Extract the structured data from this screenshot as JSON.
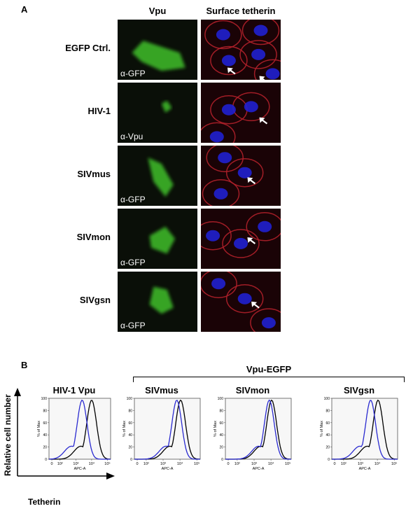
{
  "panel_a": {
    "letter": "A",
    "columns": [
      "Vpu",
      "Surface tetherin"
    ],
    "rows": [
      {
        "label": "EGFP Ctrl.",
        "antibody": "α-GFP"
      },
      {
        "label": "HIV-1",
        "antibody": "α-Vpu"
      },
      {
        "label": "SIVmus",
        "antibody": "α-GFP"
      },
      {
        "label": "SIVmon",
        "antibody": "α-GFP"
      },
      {
        "label": "SIVgsn",
        "antibody": "α-GFP"
      }
    ],
    "colors": {
      "vpu_stain": "#3fbf2a",
      "tetherin_stain": "#b0202a",
      "nuclei": "#2020d0",
      "arrow": "#ffffff"
    }
  },
  "panel_b": {
    "letter": "B",
    "group_label": "Vpu-EGFP",
    "y_axis_label": "Relative cell number",
    "x_axis_label": "Tetherin",
    "hist_ylabel": "% of Max",
    "hist_xlabel": "APC-A",
    "colors": {
      "vpu": "#2a2ad0",
      "control": "#000000"
    }
  },
  "chart_data": [
    {
      "type": "line",
      "title": "HIV-1 Vpu",
      "xscale": "log",
      "xlim": [
        0,
        100000
      ],
      "ylim": [
        0,
        100
      ],
      "yticks": [
        "0",
        "20",
        "40",
        "60",
        "80",
        "100"
      ],
      "xticks": [
        "0",
        "10²",
        "10³",
        "10⁴",
        "10⁵"
      ],
      "series": [
        {
          "values_peak_x": 2500,
          "values_peak_y": 98
        },
        {
          "values_peak_x": 10000,
          "values_peak_y": 100
        }
      ]
    },
    {
      "type": "line",
      "title": "SIVmus",
      "xscale": "log",
      "xlim": [
        0,
        100000
      ],
      "ylim": [
        0,
        100
      ],
      "yticks": [
        "0",
        "20",
        "40",
        "60",
        "80",
        "100"
      ],
      "xticks": [
        "0",
        "10²",
        "10³",
        "10⁴",
        "10⁵"
      ],
      "series": [
        {
          "values_peak_x": 6500,
          "values_peak_y": 100
        },
        {
          "values_peak_x": 11000,
          "values_peak_y": 100
        }
      ]
    },
    {
      "type": "line",
      "title": "SIVmon",
      "xscale": "log",
      "xlim": [
        0,
        100000
      ],
      "ylim": [
        0,
        100
      ],
      "yticks": [
        "0",
        "20",
        "40",
        "60",
        "80",
        "100"
      ],
      "xticks": [
        "0",
        "10²",
        "10³",
        "10⁴",
        "10⁵"
      ],
      "series": [
        {
          "values_peak_x": 8000,
          "values_peak_y": 100
        },
        {
          "values_peak_x": 11000,
          "values_peak_y": 100
        }
      ]
    },
    {
      "type": "line",
      "title": "SIVgsn",
      "xscale": "log",
      "xlim": [
        0,
        100000
      ],
      "ylim": [
        0,
        100
      ],
      "yticks": [
        "0",
        "20",
        "40",
        "60",
        "80",
        "100"
      ],
      "xticks": [
        "0",
        "10²",
        "10³",
        "10⁴",
        "10⁵"
      ],
      "series": [
        {
          "values_peak_x": 4000,
          "values_peak_y": 100
        },
        {
          "values_peak_x": 11000,
          "values_peak_y": 100
        }
      ]
    }
  ]
}
